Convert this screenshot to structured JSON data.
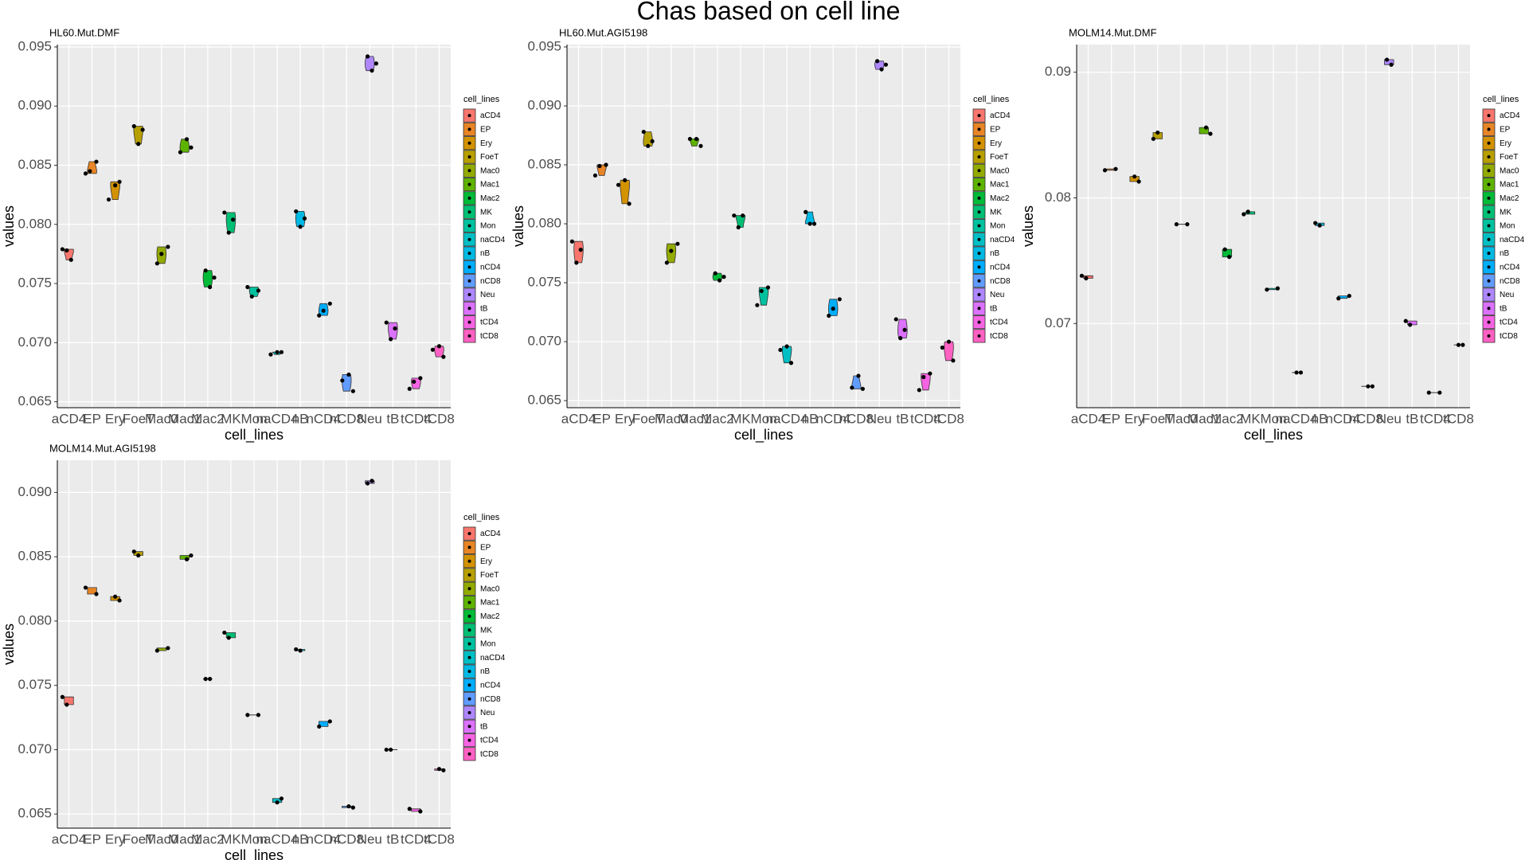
{
  "title": "Chas based on cell line",
  "chart_data": [
    {
      "type": "violin",
      "title": "HL60.Mut.DMF",
      "x_label": "cell_lines",
      "y_label": "values",
      "legend_title": "cell_lines",
      "legend": "right",
      "grid": true,
      "categories": [
        "aCD4",
        "EP",
        "Ery",
        "FoeT",
        "Mac0",
        "Mac1",
        "Mac2",
        "MK",
        "Mon",
        "naCD4",
        "nB",
        "nCD4",
        "nCD8",
        "Neu",
        "tB",
        "tCD4",
        "tCD8"
      ],
      "colors": [
        "#F8766D",
        "#E88526",
        "#D39200",
        "#B79F00",
        "#93AA00",
        "#5EB300",
        "#00BA38",
        "#00BF74",
        "#00C19F",
        "#00BFC4",
        "#00B9E3",
        "#00ADFA",
        "#619CFF",
        "#AE87FF",
        "#DB72FB",
        "#F564E3",
        "#FF61C3"
      ],
      "values": [
        [
          0.0779,
          0.0778,
          0.077
        ],
        [
          0.0853,
          0.0843,
          0.0845
        ],
        [
          0.0833,
          0.0836,
          0.0821
        ],
        [
          0.0883,
          0.0868,
          0.088
        ],
        [
          0.0781,
          0.0767,
          0.0775
        ],
        [
          0.0872,
          0.0865,
          0.0861
        ],
        [
          0.0761,
          0.0747,
          0.0755
        ],
        [
          0.081,
          0.0793,
          0.0804
        ],
        [
          0.0744,
          0.0747,
          0.0739
        ],
        [
          0.0692,
          0.0692,
          0.069
        ],
        [
          0.0811,
          0.0798,
          0.0805
        ],
        [
          0.0733,
          0.0723,
          0.0727
        ],
        [
          0.0673,
          0.0659,
          0.0668
        ],
        [
          0.0942,
          0.093,
          0.0936
        ],
        [
          0.0717,
          0.0703,
          0.0712
        ],
        [
          0.067,
          0.0661,
          0.0667
        ],
        [
          0.0697,
          0.0688,
          0.0694
        ]
      ],
      "ylim": [
        0.0645,
        0.0952
      ],
      "yticks": [
        0.065,
        {
          "value": 0.07,
          "label": "0.070"
        },
        0.075,
        {
          "value": 0.08,
          "label": "0.080"
        },
        0.085,
        {
          "value": 0.09,
          "label": "0.090"
        },
        0.095
      ]
    },
    {
      "type": "violin",
      "title": "HL60.Mut.AGI5198",
      "x_label": "cell_lines",
      "y_label": "values",
      "legend_title": "cell_lines",
      "legend": "right",
      "grid": true,
      "categories": [
        "aCD4",
        "EP",
        "Ery",
        "FoeT",
        "Mac0",
        "Mac1",
        "Mac2",
        "MK",
        "Mon",
        "naCD4",
        "nB",
        "nCD4",
        "nCD8",
        "Neu",
        "tB",
        "tCD4",
        "tCD8"
      ],
      "colors": [
        "#F8766D",
        "#E88526",
        "#D39200",
        "#B79F00",
        "#93AA00",
        "#5EB300",
        "#00BA38",
        "#00BF74",
        "#00C19F",
        "#00BFC4",
        "#00B9E3",
        "#00ADFA",
        "#619CFF",
        "#AE87FF",
        "#DB72FB",
        "#F564E3",
        "#FF61C3"
      ],
      "values": [
        [
          0.0785,
          0.0767,
          0.0778
        ],
        [
          0.085,
          0.0841,
          0.0849
        ],
        [
          0.0837,
          0.0817,
          0.0833
        ],
        [
          0.0878,
          0.0866,
          0.087
        ],
        [
          0.0783,
          0.0767,
          0.0777
        ],
        [
          0.0872,
          0.0866,
          0.0872
        ],
        [
          0.0758,
          0.0752,
          0.0755
        ],
        [
          0.0807,
          0.0797,
          0.0807
        ],
        [
          0.0746,
          0.0731,
          0.0743
        ],
        [
          0.0696,
          0.0682,
          0.0693
        ],
        [
          0.081,
          0.08,
          0.08
        ],
        [
          0.0736,
          0.0722,
          0.0728
        ],
        [
          0.0671,
          0.066,
          0.0661
        ],
        [
          0.0938,
          0.0931,
          0.0935
        ],
        [
          0.0719,
          0.0703,
          0.071
        ],
        [
          0.0673,
          0.0659,
          0.067
        ],
        [
          0.07,
          0.0684,
          0.0695
        ]
      ],
      "ylim": [
        0.0644,
        0.0952
      ],
      "yticks": [
        0.065,
        {
          "value": 0.07,
          "label": "0.070"
        },
        0.075,
        {
          "value": 0.08,
          "label": "0.080"
        },
        0.085,
        {
          "value": 0.09,
          "label": "0.090"
        },
        0.095
      ]
    },
    {
      "type": "violin",
      "title": "MOLM14.Mut.DMF",
      "x_label": "cell_lines",
      "y_label": "values",
      "legend_title": "cell_lines",
      "legend": "right",
      "grid": true,
      "categories": [
        "aCD4",
        "EP",
        "Ery",
        "FoeT",
        "Mac0",
        "Mac1",
        "Mac2",
        "MK",
        "Mon",
        "naCD4",
        "nB",
        "nCD4",
        "nCD8",
        "Neu",
        "tB",
        "tCD4",
        "tCD8"
      ],
      "colors": [
        "#F8766D",
        "#E88526",
        "#D39200",
        "#B79F00",
        "#93AA00",
        "#5EB300",
        "#00BA38",
        "#00BF74",
        "#00C19F",
        "#00BFC4",
        "#00B9E3",
        "#00ADFA",
        "#619CFF",
        "#AE87FF",
        "#DB72FB",
        "#F564E3",
        "#FF61C3"
      ],
      "values": [
        [
          0.0738,
          0.0736
        ],
        [
          0.0823,
          0.0822
        ],
        [
          0.0817,
          0.0813
        ],
        [
          0.0847,
          0.0852
        ],
        [
          0.0779,
          0.0779
        ],
        [
          0.0856,
          0.0851
        ],
        [
          0.0759,
          0.0753
        ],
        [
          0.0787,
          0.0789
        ],
        [
          0.0728,
          0.0727
        ],
        [
          0.0661,
          0.0661
        ],
        [
          0.078,
          0.0778
        ],
        [
          0.0722,
          0.072
        ],
        [
          0.065,
          0.065
        ],
        [
          0.091,
          0.0906
        ],
        [
          0.0702,
          0.0699
        ],
        [
          0.0645,
          0.0645
        ],
        [
          0.0683,
          0.0683
        ]
      ],
      "ylim": [
        0.0633,
        0.0922
      ],
      "yticks": [
        0.07,
        0.08,
        0.09
      ]
    },
    {
      "type": "violin",
      "title": "MOLM14.Mut.AGI5198",
      "x_label": "cell_lines",
      "y_label": "values",
      "legend_title": "cell_lines",
      "legend": "right",
      "grid": true,
      "categories": [
        "aCD4",
        "EP",
        "Ery",
        "FoeT",
        "Mac0",
        "Mac1",
        "Mac2",
        "MK",
        "Mon",
        "naCD4",
        "nB",
        "nCD4",
        "nCD8",
        "Neu",
        "tB",
        "tCD4",
        "tCD8"
      ],
      "colors": [
        "#F8766D",
        "#E88526",
        "#D39200",
        "#B79F00",
        "#93AA00",
        "#5EB300",
        "#00BA38",
        "#00BF74",
        "#00C19F",
        "#00BFC4",
        "#00B9E3",
        "#00ADFA",
        "#619CFF",
        "#AE87FF",
        "#DB72FB",
        "#F564E3",
        "#FF61C3"
      ],
      "values": [
        [
          0.0741,
          0.0735
        ],
        [
          0.0821,
          0.0826
        ],
        [
          0.0819,
          0.0816
        ],
        [
          0.0854,
          0.0851
        ],
        [
          0.0779,
          0.0777
        ],
        [
          0.0848,
          0.0851
        ],
        [
          0.0755,
          0.0755
        ],
        [
          0.0791,
          0.0787
        ],
        [
          0.0727,
          0.0727
        ],
        [
          0.0659,
          0.0662
        ],
        [
          0.0778,
          0.0777
        ],
        [
          0.0722,
          0.0718
        ],
        [
          0.0656,
          0.0655
        ],
        [
          0.0907,
          0.0909
        ],
        [
          0.07,
          0.07
        ],
        [
          0.0652,
          0.0654
        ],
        [
          0.0685,
          0.0684
        ]
      ],
      "ylim": [
        0.0639,
        0.0925
      ],
      "yticks": [
        0.065,
        {
          "value": 0.07,
          "label": "0.070"
        },
        0.075,
        {
          "value": 0.08,
          "label": "0.080"
        },
        0.085,
        {
          "value": 0.09,
          "label": "0.090"
        }
      ]
    }
  ]
}
